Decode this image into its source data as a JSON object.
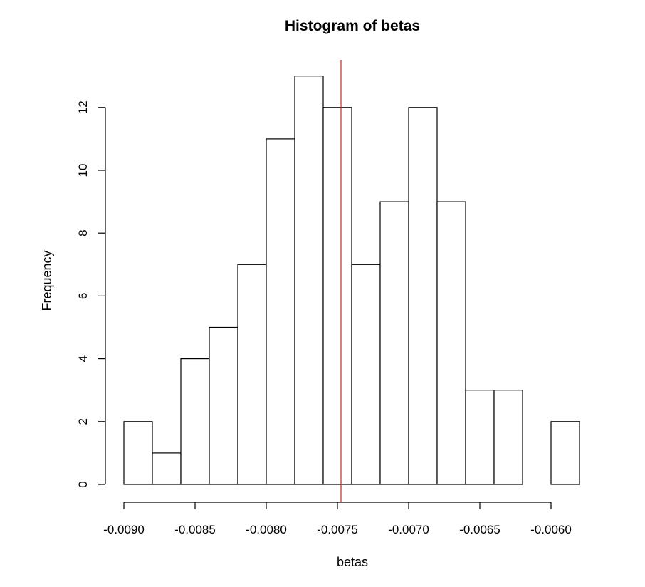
{
  "chart_data": {
    "type": "bar",
    "title": "Histogram of betas",
    "xlabel": "betas",
    "ylabel": "Frequency",
    "bin_edges": [
      -0.009,
      -0.0088,
      -0.0086,
      -0.0084,
      -0.0082,
      -0.008,
      -0.0078,
      -0.0076,
      -0.0074,
      -0.0072,
      -0.007,
      -0.0068,
      -0.0066,
      -0.0064,
      -0.0062,
      -0.006,
      -0.0058
    ],
    "values": [
      2,
      1,
      4,
      5,
      7,
      11,
      13,
      12,
      7,
      9,
      12,
      9,
      3,
      3,
      0,
      2
    ],
    "x_ticks": [
      -0.009,
      -0.0085,
      -0.008,
      -0.0075,
      -0.007,
      -0.0065,
      -0.006
    ],
    "x_tick_labels": [
      "-0.0090",
      "-0.0085",
      "-0.0080",
      "-0.0075",
      "-0.0070",
      "-0.0065",
      "-0.0060"
    ],
    "y_ticks": [
      0,
      2,
      4,
      6,
      8,
      10,
      12
    ],
    "y_tick_labels": [
      "0",
      "2",
      "4",
      "6",
      "8",
      "10",
      "12"
    ],
    "xlim": [
      -0.009,
      -0.0058
    ],
    "ylim": [
      0,
      13
    ],
    "vline": {
      "x": -0.007475,
      "color": "#e41a1c"
    },
    "bar_fill": "#ffffff",
    "bar_stroke": "#000000",
    "grid": false
  }
}
